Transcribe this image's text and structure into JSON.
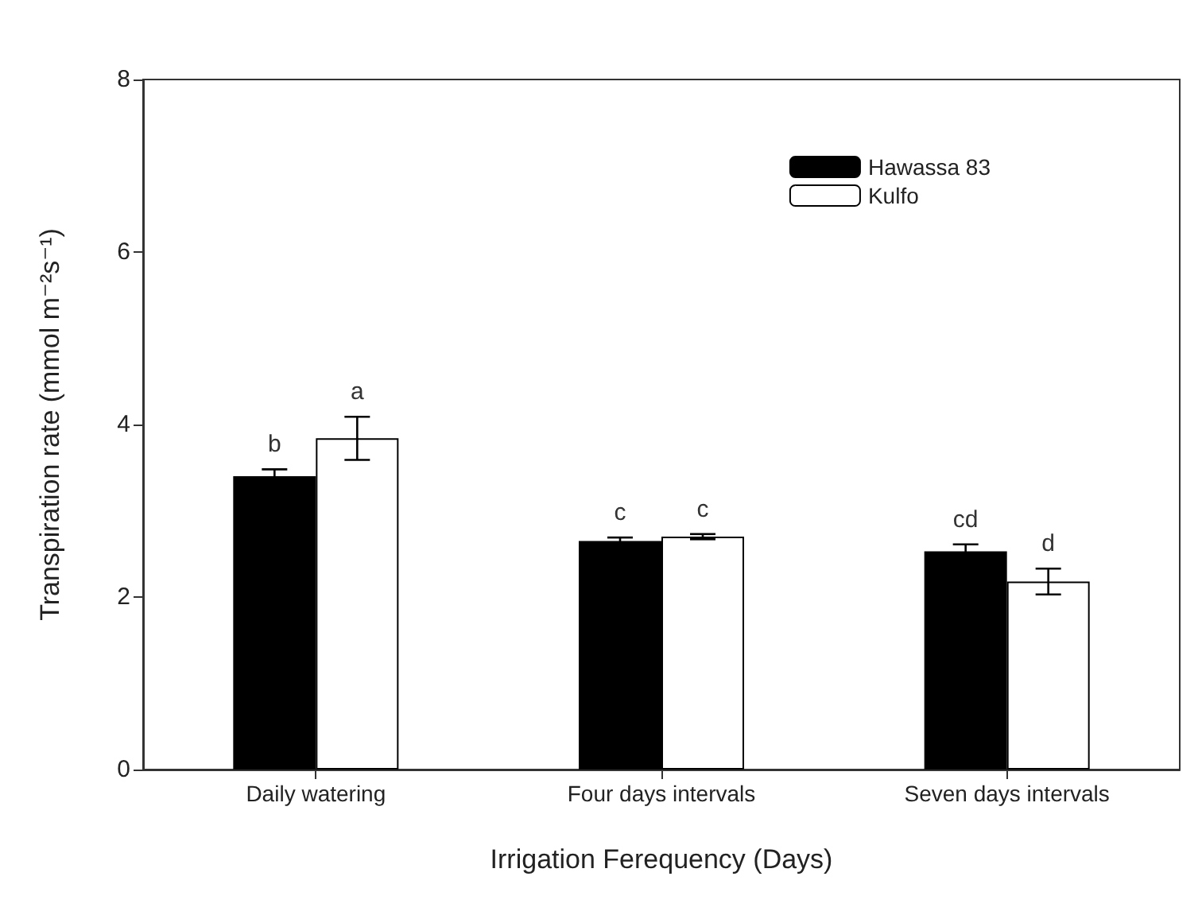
{
  "chart_data": {
    "type": "bar",
    "xlabel": "Irrigation Ferequency (Days)",
    "ylabel": "Transpiration rate (mmol m⁻²s⁻¹)",
    "categories": [
      "Daily watering",
      "Four days intervals",
      "Seven days intervals"
    ],
    "series": [
      {
        "name": "Hawassa 83",
        "color": "#000000",
        "values": [
          3.4,
          2.65,
          2.53
        ],
        "errors": [
          0.08,
          0.04,
          0.08
        ]
      },
      {
        "name": "Kulfo",
        "color": "#ffffff",
        "values": [
          3.84,
          2.7,
          2.18
        ],
        "errors": [
          0.25,
          0.03,
          0.15
        ]
      }
    ],
    "ylim": [
      0,
      8
    ],
    "yticks": [
      0,
      2,
      4,
      6,
      8
    ],
    "grid": false,
    "legend": "top right",
    "annotations": [
      "b",
      "a",
      "c",
      "c",
      "cd",
      "d"
    ]
  }
}
